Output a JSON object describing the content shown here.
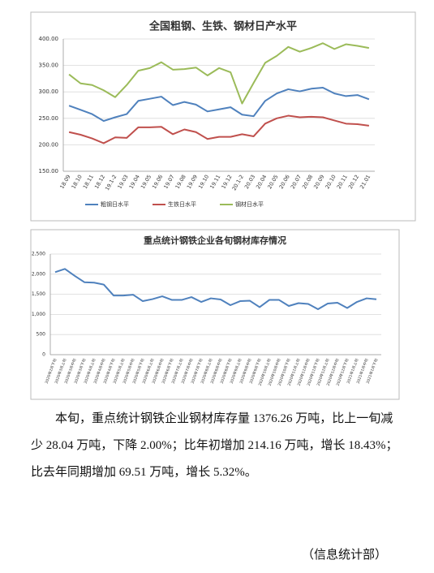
{
  "chart_data": [
    {
      "type": "line",
      "title": "全国粗钢、生铁、钢材日产水平",
      "categories": [
        "18.09",
        "18.10",
        "18.11",
        "18.12",
        "19.1-2",
        "19.03",
        "19.04",
        "19.05",
        "19.06",
        "19.07",
        "19.08",
        "19.09",
        "19.10",
        "19.11",
        "19.12",
        "20.1-2",
        "20.03",
        "20.04",
        "20.05",
        "20.06",
        "20.07",
        "20.08",
        "20.09",
        "20.10",
        "20.11",
        "20.12",
        "21.01"
      ],
      "series": [
        {
          "name": "粗钢日水平",
          "color": "#4f81bd",
          "values": [
            274,
            266,
            258,
            245,
            252,
            258,
            283,
            287,
            291,
            275,
            281,
            276,
            263,
            267,
            271,
            257,
            254,
            283,
            297,
            305,
            301,
            306,
            308,
            297,
            292,
            294,
            286
          ]
        },
        {
          "name": "生铁日水平",
          "color": "#c0504d",
          "values": [
            224,
            219,
            212,
            203,
            214,
            213,
            233,
            233,
            234,
            220,
            229,
            224,
            211,
            215,
            215,
            220,
            216,
            240,
            250,
            255,
            252,
            253,
            252,
            246,
            240,
            239,
            236
          ]
        },
        {
          "name": "钢材日水平",
          "color": "#9bbb59",
          "values": [
            333,
            316,
            313,
            303,
            290,
            313,
            340,
            345,
            356,
            342,
            343,
            346,
            331,
            345,
            337,
            278,
            317,
            355,
            368,
            385,
            376,
            383,
            392,
            381,
            390,
            387,
            383
          ]
        }
      ],
      "ylim": [
        150,
        400
      ],
      "yticks": [
        {
          "value": 150,
          "label": "150.00"
        },
        {
          "value": 200,
          "label": "200.00"
        },
        {
          "value": 250,
          "label": "250.00"
        },
        {
          "value": 300,
          "label": "300.00"
        },
        {
          "value": 350,
          "label": "350.00"
        },
        {
          "value": 400,
          "label": "400.00"
        }
      ],
      "grid": true,
      "legend": "bottom"
    },
    {
      "type": "line",
      "title": "重点统计钢铁企业各旬钢材库存情况",
      "categories": [
        "2020年2月下旬",
        "2020年3月上旬",
        "2020年3月中旬",
        "2020年3月下旬",
        "2020年4月上旬",
        "2020年4月中旬",
        "2020年4月下旬",
        "2020年5月上旬",
        "2020年5月中旬",
        "2020年5月下旬",
        "2020年6月上旬",
        "2020年6月中旬",
        "2020年6月下旬",
        "2020年7月上旬",
        "2020年7月中旬",
        "2020年7月下旬",
        "2020年8月上旬",
        "2020年8月中旬",
        "2020年8月下旬",
        "2020年9月上旬",
        "2020年9月中旬",
        "2020年9月下旬",
        "2020年10月上旬",
        "2020年10月中旬",
        "2020年10月下旬",
        "2020年11月上旬",
        "2020年11月中旬",
        "2020年11月下旬",
        "2020年12月上旬",
        "2020年12月中旬",
        "2020年12月下旬",
        "2021年1月上旬",
        "2021年1月中旬",
        "2021年1月下旬"
      ],
      "values": [
        2050,
        2130,
        1960,
        1800,
        1790,
        1740,
        1470,
        1470,
        1490,
        1330,
        1380,
        1450,
        1360,
        1360,
        1430,
        1310,
        1400,
        1370,
        1230,
        1330,
        1340,
        1180,
        1360,
        1360,
        1210,
        1280,
        1260,
        1130,
        1270,
        1290,
        1160,
        1310,
        1400,
        1376.26
      ],
      "color": "#4f81bd",
      "ylim": [
        0,
        2500
      ],
      "yticks": [
        0,
        500,
        {
          "value": 1000,
          "label": "1,000"
        },
        {
          "value": 1500,
          "label": "1,500"
        },
        {
          "value": 2000,
          "label": "2,000"
        },
        {
          "value": 2500,
          "label": "2,500"
        }
      ],
      "grid": true
    }
  ],
  "paragraph": "本旬，重点统计钢铁企业钢材库存量 1376.26 万吨，比上一旬减少 28.04 万吨，下降 2.00%；比年初增加 214.16 万吨，增长 18.43%；比去年同期增加 69.51 万吨，增长 5.32%。",
  "footer": "（信息统计部）"
}
